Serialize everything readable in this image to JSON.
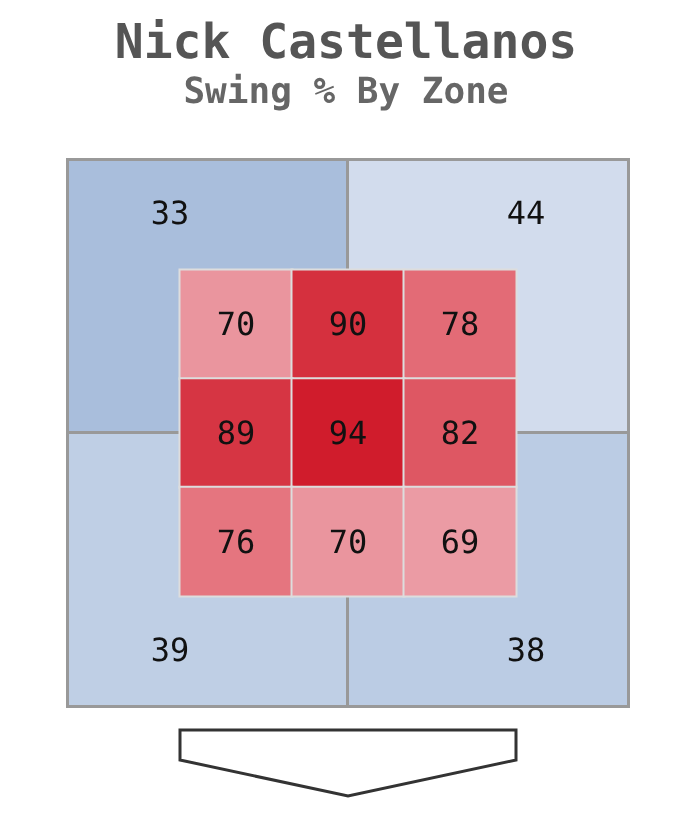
{
  "chart_data": [
    {
      "type": "heatmap",
      "title": "Nick Castellanos",
      "subtitle": "Swing % By Zone",
      "categories": [
        null,
        null
      ],
      "y_categories": [
        null,
        null
      ],
      "cells": [
        [
          33,
          44
        ],
        [
          39,
          38
        ]
      ],
      "data_labels": true
    },
    {
      "type": "heatmap",
      "categories": [
        null,
        null,
        null
      ],
      "y_categories": [
        null,
        null,
        null
      ],
      "cells": [
        [
          70,
          90,
          78
        ],
        [
          89,
          94,
          82
        ],
        [
          76,
          70,
          69
        ]
      ],
      "data_labels": true
    }
  ]
}
